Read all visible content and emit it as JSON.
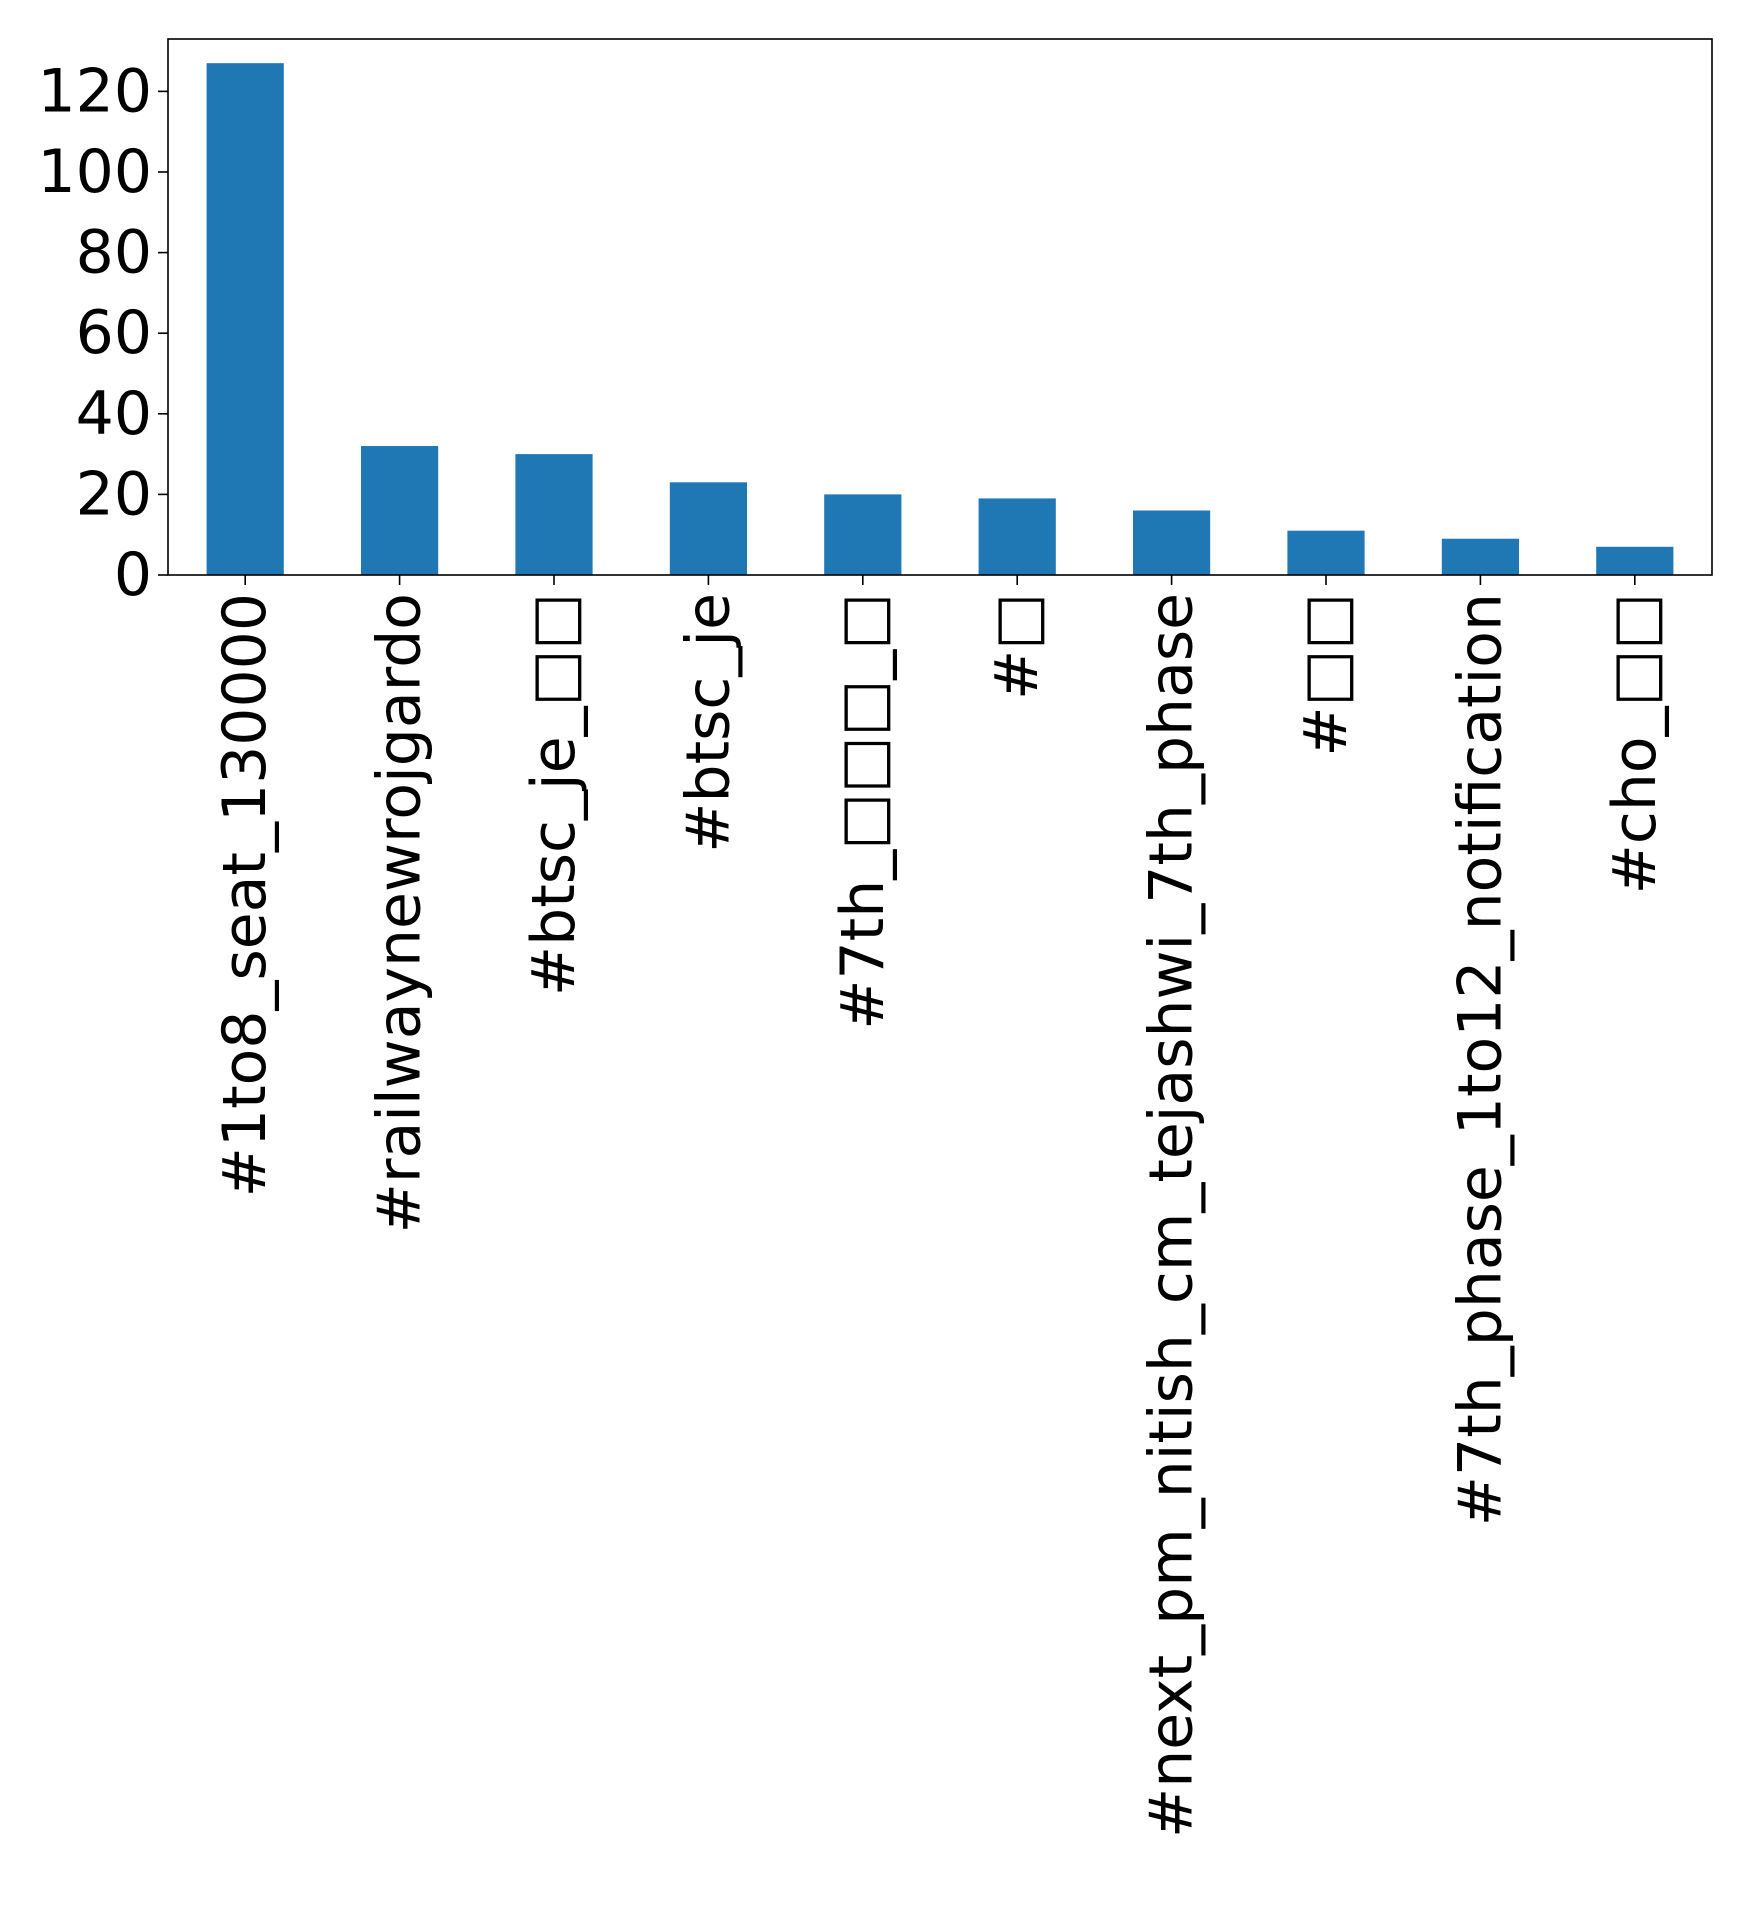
{
  "chart_data": {
    "type": "bar",
    "categories": [
      "#1to8_seat_130000",
      "#railwaynewrojgardo",
      "#btsc_je_□□",
      "#btsc_je",
      "#7th_□□□_□",
      "#□",
      "#next_pm_nitish_cm_tejashwi_7th_phase",
      "#□□",
      "#7th_phase_1to12_notification",
      "#cho_□□"
    ],
    "values": [
      127,
      32,
      30,
      23,
      20,
      19,
      16,
      11,
      9,
      7
    ],
    "title": "",
    "xlabel": "",
    "ylabel": "",
    "ylim": [
      0,
      133
    ],
    "yticks": [
      0,
      20,
      40,
      60,
      80,
      100,
      120
    ],
    "grid": false,
    "legend": false,
    "bar_color": "#1f77b4"
  }
}
